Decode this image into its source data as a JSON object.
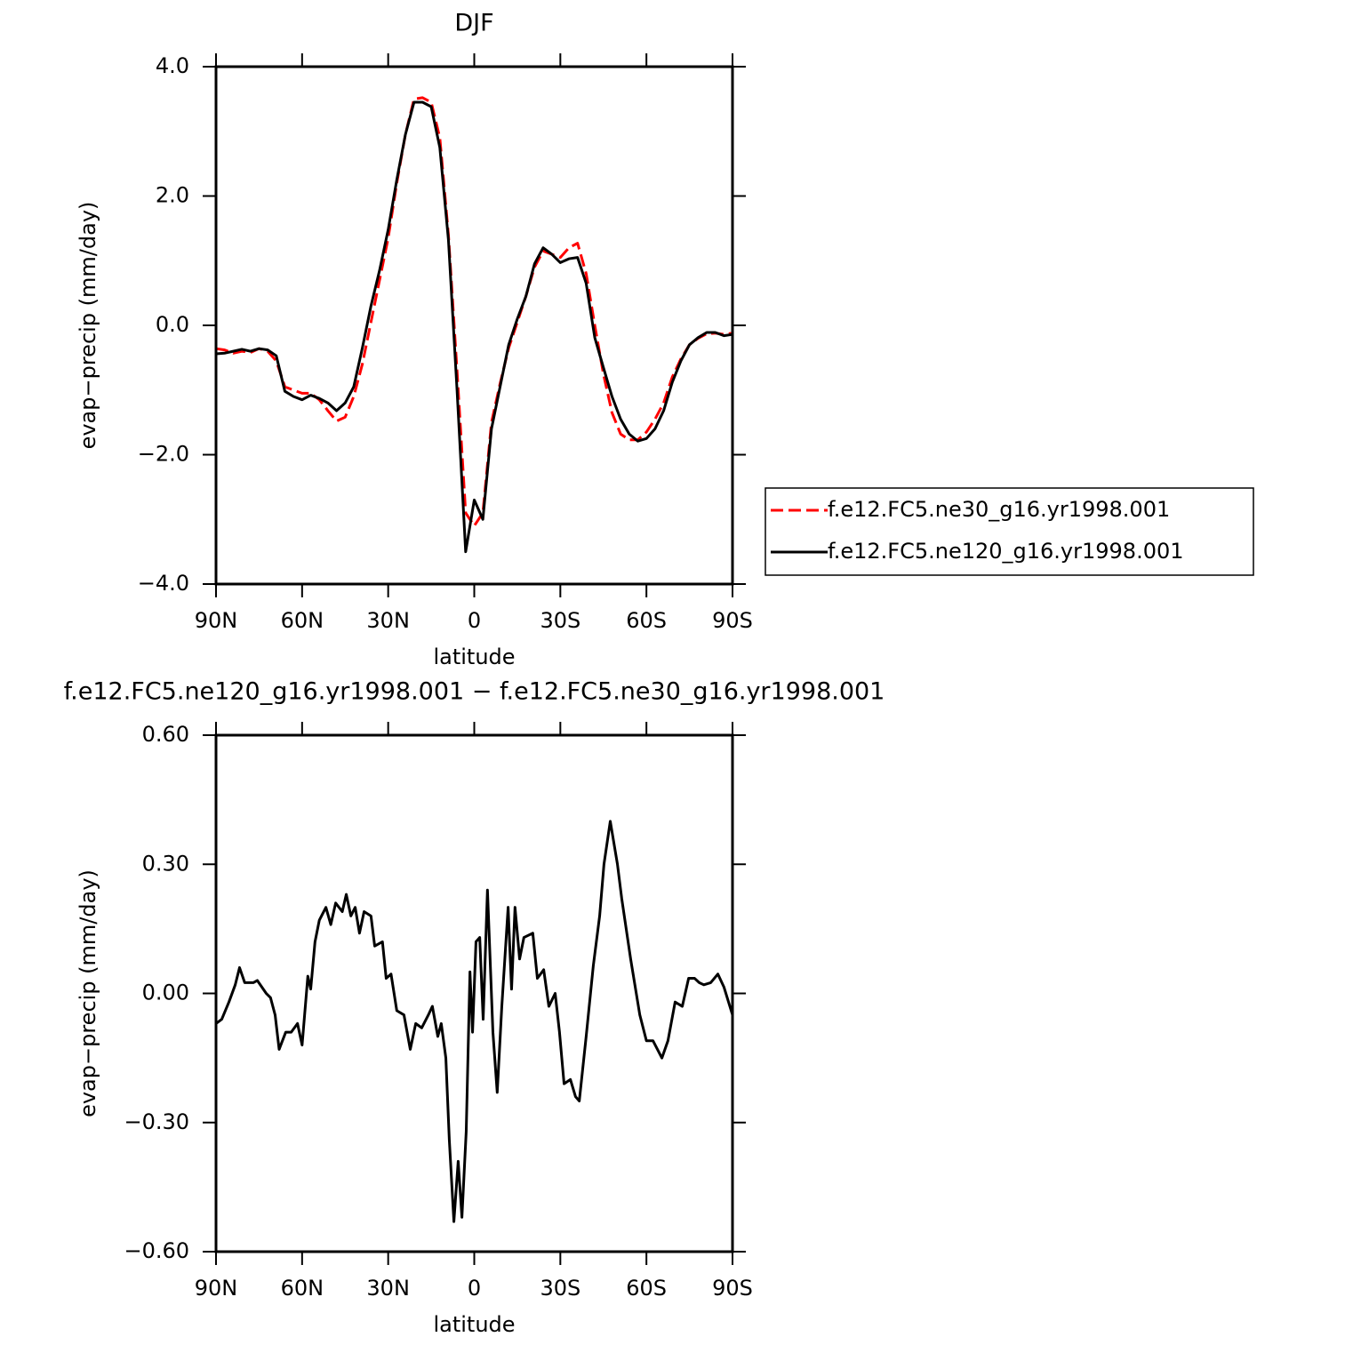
{
  "chart_data": [
    {
      "type": "line",
      "title": "DJF",
      "xlabel": "latitude",
      "ylabel": "evap−precip (mm/day)",
      "x": [
        90,
        87,
        84,
        81,
        78,
        75,
        72,
        69,
        66,
        63,
        60,
        57,
        54,
        51,
        48,
        45,
        42,
        39,
        36,
        33,
        30,
        27,
        24,
        21,
        18,
        15,
        12,
        9,
        6,
        3,
        0,
        -3,
        -6,
        -9,
        -12,
        -15,
        -18,
        -21,
        -24,
        -27,
        -30,
        -33,
        -36,
        -39,
        -42,
        -45,
        -48,
        -51,
        -54,
        -57,
        -60,
        -63,
        -66,
        -69,
        -72,
        -75,
        -78,
        -81,
        -84,
        -87,
        -90
      ],
      "series": [
        {
          "name": "f.e12.FC5.ne30_g16.yr1998.001",
          "color": "#ff0000",
          "line_style": "dashed",
          "values": [
            -0.36,
            -0.38,
            -0.43,
            -0.4,
            -0.42,
            -0.36,
            -0.4,
            -0.55,
            -0.95,
            -1.0,
            -1.05,
            -1.05,
            -1.15,
            -1.32,
            -1.48,
            -1.42,
            -1.1,
            -0.6,
            0.05,
            0.7,
            1.35,
            2.2,
            2.95,
            3.5,
            3.52,
            3.45,
            2.9,
            1.4,
            -0.7,
            -2.9,
            -3.1,
            -2.9,
            -1.5,
            -0.9,
            -0.35,
            0.05,
            0.45,
            0.9,
            1.15,
            1.1,
            1.05,
            1.2,
            1.27,
            0.8,
            0.0,
            -0.75,
            -1.35,
            -1.68,
            -1.77,
            -1.77,
            -1.65,
            -1.45,
            -1.2,
            -0.8,
            -0.52,
            -0.3,
            -0.2,
            -0.13,
            -0.12,
            -0.14,
            -0.12
          ]
        },
        {
          "name": "f.e12.FC5.ne120_g16.yr1998.001",
          "color": "#000000",
          "line_style": "solid",
          "values": [
            -0.44,
            -0.43,
            -0.4,
            -0.37,
            -0.4,
            -0.36,
            -0.38,
            -0.47,
            -1.02,
            -1.1,
            -1.15,
            -1.08,
            -1.13,
            -1.2,
            -1.32,
            -1.2,
            -0.95,
            -0.35,
            0.3,
            0.85,
            1.48,
            2.25,
            2.95,
            3.45,
            3.45,
            3.38,
            2.75,
            1.32,
            -1.0,
            -3.5,
            -2.7,
            -3.0,
            -1.6,
            -0.95,
            -0.3,
            0.1,
            0.45,
            0.95,
            1.2,
            1.1,
            0.97,
            1.03,
            1.05,
            0.65,
            -0.19,
            -0.65,
            -1.1,
            -1.45,
            -1.68,
            -1.79,
            -1.75,
            -1.6,
            -1.32,
            -0.88,
            -0.55,
            -0.3,
            -0.19,
            -0.11,
            -0.11,
            -0.16,
            -0.14
          ]
        }
      ],
      "xlim": [
        90,
        -90
      ],
      "xticks": [
        {
          "value": 90,
          "label": "90N"
        },
        {
          "value": 60,
          "label": "60N"
        },
        {
          "value": 30,
          "label": "30N"
        },
        0,
        {
          "value": -30,
          "label": "30S"
        },
        {
          "value": -60,
          "label": "60S"
        },
        {
          "value": -90,
          "label": "90S"
        }
      ],
      "ylim": [
        -4,
        4
      ],
      "yticks": [
        {
          "value": 4,
          "label": "4.0"
        },
        {
          "value": 2,
          "label": "2.0"
        },
        {
          "value": 0,
          "label": "0.0"
        },
        {
          "value": -2,
          "label": "−2.0"
        },
        {
          "value": -4,
          "label": "−4.0"
        }
      ],
      "legend": "right"
    },
    {
      "type": "line",
      "title": "f.e12.FC5.ne120_g16.yr1998.001 − f.e12.FC5.ne30_g16.yr1998.001",
      "xlabel": "latitude",
      "ylabel": "evap−precip (mm/day)",
      "x": [
        90,
        88,
        85.5,
        83.3,
        81.8,
        80,
        77,
        75.6,
        72.5,
        71,
        69.4,
        68,
        65.7,
        63.8,
        61.6,
        60,
        58,
        57,
        55.5,
        54,
        51.7,
        50,
        48.3,
        46,
        44.6,
        43,
        41.5,
        40,
        38.4,
        36,
        34.7,
        32,
        30.7,
        29,
        27,
        24.5,
        22.3,
        20.4,
        18.3,
        16,
        14.6,
        12.7,
        11.5,
        9.9,
        8.7,
        7.1,
        5.6,
        4.3,
        2.8,
        1.5,
        0.6,
        -0.6,
        -1.9,
        -3.1,
        -4.6,
        -6.5,
        -8,
        -9.6,
        -11.8,
        -13,
        -14.2,
        -15.8,
        -17.3,
        -20.4,
        -22,
        -24.2,
        -26,
        -28.2,
        -29.7,
        -31.3,
        -33.5,
        -35.3,
        -36.6,
        -39,
        -41.5,
        -43.7,
        -45.2,
        -47.4,
        -49.9,
        -51.4,
        -54.5,
        -57.7,
        -60,
        -62.3,
        -65.4,
        -67.5,
        -70,
        -72.5,
        -74.7,
        -76.8,
        -78.4,
        -80,
        -82.4,
        -84.9,
        -87,
        -90
      ],
      "series": [
        {
          "color": "#000000",
          "line_style": "solid",
          "values": [
            -0.07,
            -0.06,
            -0.02,
            0.02,
            0.06,
            0.025,
            0.025,
            0.03,
            0.0,
            -0.01,
            -0.05,
            -0.13,
            -0.09,
            -0.09,
            -0.07,
            -0.12,
            0.04,
            0.01,
            0.12,
            0.17,
            0.2,
            0.16,
            0.21,
            0.19,
            0.23,
            0.18,
            0.2,
            0.14,
            0.19,
            0.18,
            0.11,
            0.12,
            0.035,
            0.045,
            -0.04,
            -0.05,
            -0.13,
            -0.07,
            -0.08,
            -0.05,
            -0.03,
            -0.1,
            -0.07,
            -0.15,
            -0.34,
            -0.53,
            -0.39,
            -0.52,
            -0.32,
            0.05,
            -0.09,
            0.12,
            0.13,
            -0.06,
            0.24,
            -0.09,
            -0.23,
            -0.03,
            0.2,
            0.01,
            0.2,
            0.08,
            0.13,
            0.14,
            0.035,
            0.055,
            -0.03,
            0.0,
            -0.09,
            -0.21,
            -0.2,
            -0.24,
            -0.25,
            -0.1,
            0.065,
            0.18,
            0.3,
            0.4,
            0.3,
            0.22,
            0.08,
            -0.05,
            -0.11,
            -0.11,
            -0.15,
            -0.11,
            -0.02,
            -0.03,
            0.035,
            0.035,
            0.025,
            0.02,
            0.025,
            0.045,
            0.015,
            -0.05
          ]
        }
      ],
      "xlim": [
        90,
        -90
      ],
      "xticks": [
        {
          "value": 90,
          "label": "90N"
        },
        {
          "value": 60,
          "label": "60N"
        },
        {
          "value": 30,
          "label": "30N"
        },
        0,
        {
          "value": -30,
          "label": "30S"
        },
        {
          "value": -60,
          "label": "60S"
        },
        {
          "value": -90,
          "label": "90S"
        }
      ],
      "ylim": [
        -0.6,
        0.6
      ],
      "yticks": [
        {
          "value": 0.6,
          "label": "0.60"
        },
        {
          "value": 0.3,
          "label": "0.30"
        },
        {
          "value": 0,
          "label": "0.00"
        },
        {
          "value": -0.3,
          "label": "−0.30"
        },
        {
          "value": -0.6,
          "label": "−0.60"
        }
      ]
    }
  ]
}
